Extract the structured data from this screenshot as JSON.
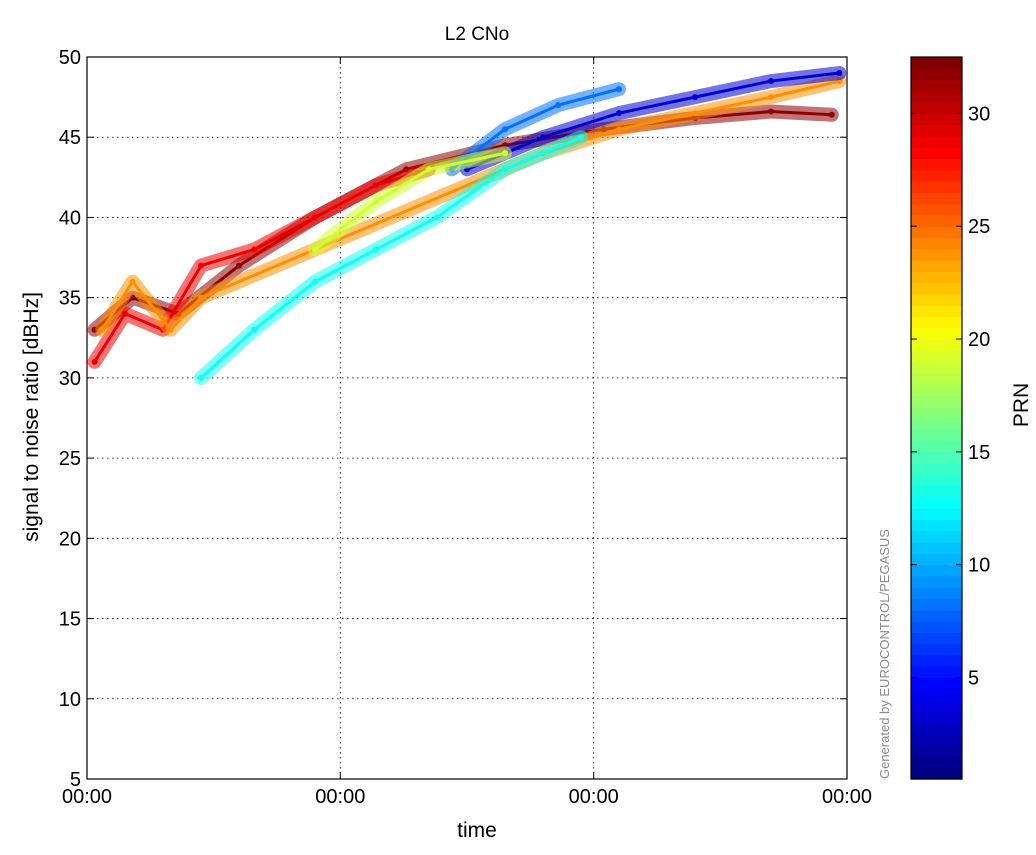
{
  "chart_data": {
    "type": "scatter",
    "title": "L2 CNo",
    "xlabel": "time",
    "ylabel": "signal to noise ratio [dBHz]",
    "ylim": [
      5,
      50
    ],
    "yticks": [
      5,
      10,
      15,
      20,
      25,
      30,
      35,
      40,
      45,
      50
    ],
    "xlim": [
      0,
      1
    ],
    "xticks": [
      0,
      0.3333,
      0.6667,
      1.0
    ],
    "xtick_labels": [
      "00:00",
      "00:00",
      "00:00",
      "00:00"
    ],
    "grid": true,
    "colorbar": {
      "label": "PRN",
      "range": [
        0.5,
        32.5
      ],
      "ticks": [
        5,
        10,
        15,
        20,
        25,
        30
      ],
      "colormap": "jet"
    },
    "watermark": "Generated by EUROCONTROL/PEGASUS",
    "series": [
      {
        "prn": 32,
        "x": [
          0.01,
          0.06,
          0.12,
          0.2,
          0.3,
          0.42,
          0.55,
          0.68,
          0.8,
          0.9,
          0.98
        ],
        "y": [
          33,
          35,
          34,
          37,
          40,
          43,
          44.5,
          45.5,
          46.2,
          46.6,
          46.4
        ]
      },
      {
        "prn": 29,
        "x": [
          0.01,
          0.05,
          0.1,
          0.15,
          0.22,
          0.3,
          0.38,
          0.45
        ],
        "y": [
          31,
          34,
          33,
          37,
          38,
          40,
          42,
          43
        ]
      },
      {
        "prn": 24,
        "x": [
          0.02,
          0.06,
          0.11,
          0.15,
          0.6,
          0.7,
          0.8,
          0.9,
          0.99
        ],
        "y": [
          33,
          36,
          33,
          35,
          44,
          45.5,
          46.5,
          47.5,
          48.5
        ]
      },
      {
        "prn": 3,
        "x": [
          0.5,
          0.6,
          0.7,
          0.8,
          0.9,
          0.99
        ],
        "y": [
          43,
          45,
          46.5,
          47.5,
          48.5,
          49
        ]
      },
      {
        "prn": 8,
        "x": [
          0.48,
          0.55,
          0.62,
          0.7
        ],
        "y": [
          43,
          45.5,
          47,
          48
        ]
      },
      {
        "prn": 13,
        "x": [
          0.15,
          0.22,
          0.3,
          0.38,
          0.46,
          0.55,
          0.65
        ],
        "y": [
          30,
          33,
          36,
          38,
          40,
          43,
          45
        ]
      },
      {
        "prn": 19,
        "x": [
          0.3,
          0.38,
          0.45,
          0.55
        ],
        "y": [
          38,
          41,
          43,
          44
        ]
      }
    ]
  }
}
